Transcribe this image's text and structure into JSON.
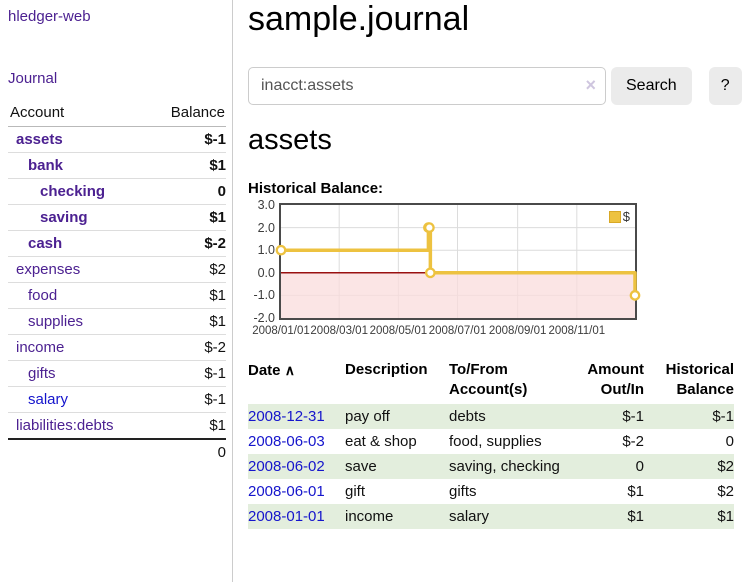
{
  "sidebar": {
    "brand": "hledger-web",
    "journal_link": "Journal",
    "accounts": {
      "col_account": "Account",
      "col_balance": "Balance",
      "rows": [
        {
          "name": "assets",
          "balance": "$-1",
          "depth": 0,
          "bold": true,
          "neg": "strong"
        },
        {
          "name": "bank",
          "balance": "$1",
          "depth": 1,
          "bold": true
        },
        {
          "name": "checking",
          "balance": "0",
          "depth": 2,
          "bold": true
        },
        {
          "name": "saving",
          "balance": "$1",
          "depth": 2,
          "bold": true
        },
        {
          "name": "cash",
          "balance": "$-2",
          "depth": 1,
          "bold": true,
          "neg": "strong"
        },
        {
          "name": "expenses",
          "balance": "$2",
          "depth": 0
        },
        {
          "name": "food",
          "balance": "$1",
          "depth": 1
        },
        {
          "name": "supplies",
          "balance": "$1",
          "depth": 1
        },
        {
          "name": "income",
          "balance": "$-2",
          "depth": 0,
          "neg": "soft"
        },
        {
          "name": "gifts",
          "balance": "$-1",
          "depth": 1,
          "neg": "soft"
        },
        {
          "name": "salary",
          "balance": "$-1",
          "depth": 1,
          "neg": "soft",
          "link_style": "blue"
        },
        {
          "name": "liabilities:debts",
          "balance": "$1",
          "depth": 0
        }
      ],
      "total": "0"
    }
  },
  "main": {
    "title": "sample.journal",
    "search": {
      "value": "inacct:assets",
      "clear_icon": "×",
      "search_button": "Search",
      "help_button": "?"
    },
    "account_title": "assets",
    "chart_label": "Historical Balance:",
    "register": {
      "sort_indicator": "∧",
      "columns": [
        {
          "line1": "Date",
          "line2": "",
          "align": "left"
        },
        {
          "line1": "Description",
          "line2": "",
          "align": "left"
        },
        {
          "line1": "To/From",
          "line2": "Account(s)",
          "align": "left"
        },
        {
          "line1": "Amount",
          "line2": "Out/In",
          "align": "right"
        },
        {
          "line1": "Historical",
          "line2": "Balance",
          "align": "right"
        }
      ],
      "rows": [
        {
          "date": "2008-12-31",
          "description": "pay off",
          "accounts": "debts",
          "amount": "$-1",
          "balance": "$-1",
          "amount_neg": true,
          "balance_neg": true
        },
        {
          "date": "2008-06-03",
          "description": "eat & shop",
          "accounts": "food, supplies",
          "amount": "$-2",
          "balance": "0",
          "amount_neg": true,
          "balance_neg": false
        },
        {
          "date": "2008-06-02",
          "description": "save",
          "accounts": "saving, checking",
          "amount": "0",
          "balance": "$2",
          "amount_neg": false,
          "balance_neg": false
        },
        {
          "date": "2008-06-01",
          "description": "gift",
          "accounts": "gifts",
          "amount": "$1",
          "balance": "$2",
          "amount_neg": false,
          "balance_neg": false
        },
        {
          "date": "2008-01-01",
          "description": "income",
          "accounts": "salary",
          "amount": "$1",
          "balance": "$1",
          "amount_neg": false,
          "balance_neg": false
        }
      ]
    }
  },
  "chart_data": {
    "type": "line",
    "title": "Historical Balance:",
    "step": true,
    "x_range": [
      "2008-01-01",
      "2008-12-31"
    ],
    "ylim": [
      -2,
      3
    ],
    "x_ticks": [
      "2008/01/01",
      "2008/03/01",
      "2008/05/01",
      "2008/07/01",
      "2008/09/01",
      "2008/11/01"
    ],
    "y_ticks": [
      3.0,
      2.0,
      1.0,
      0.0,
      -1.0,
      -2.0
    ],
    "series": [
      {
        "name": "$",
        "color": "#edc240",
        "points": [
          [
            "2008-01-01",
            1
          ],
          [
            "2008-06-01",
            2
          ],
          [
            "2008-06-02",
            2
          ],
          [
            "2008-06-03",
            0
          ],
          [
            "2008-12-31",
            -1
          ]
        ]
      }
    ],
    "legend_position": "top-right",
    "negative_region_fill": "#f9dcdc",
    "zero_line_color": "#991111",
    "grid_color": "#dcdcdc"
  }
}
